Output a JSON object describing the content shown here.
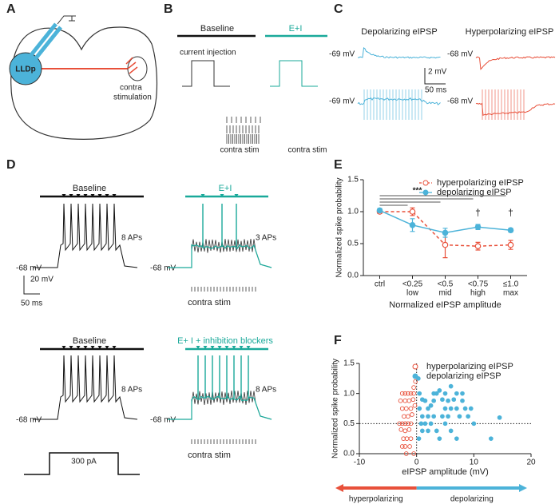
{
  "figure": {
    "panel_letters": [
      "A",
      "B",
      "C",
      "D",
      "E",
      "F"
    ],
    "a": {
      "region": "LLDp",
      "stim_line1": "contra",
      "stim_line2": "stimulation"
    },
    "b": {
      "baseline": "Baseline",
      "ei": "E+I",
      "current": "current injection",
      "contra": [
        "contra stim",
        "contra stim"
      ]
    },
    "c": {
      "depol": "Depolarizing eIPSP",
      "hyper": "Hyperpolarizing eIPSP",
      "v": [
        "-69 mV",
        "-68 mV",
        "-69 mV",
        "-68 mV"
      ],
      "scale_v": "2 mV",
      "scale_t": "50 ms"
    },
    "d": {
      "baseline": "Baseline",
      "ei": "E+I",
      "baseline2": "Baseline",
      "blockers": "E+ I + inhibition blockers",
      "aps": [
        "8 APs",
        "3 APs",
        "8 APs",
        "8 APs"
      ],
      "v": [
        "-68 mV",
        "-68 mV",
        "-68 mV",
        "-68 mV"
      ],
      "contra": [
        "contra stim",
        "contra stim"
      ],
      "scale_v": "20 mV",
      "scale_t": "50 ms",
      "current": "300 pA"
    }
  },
  "chart_data": [
    {
      "type": "line",
      "xlabel": "Normalized eIPSP amplitude",
      "ylabel": "Normalized spike probability",
      "categories": [
        "ctrl",
        "<0.25",
        "<0.5",
        "<0.75",
        "≤1.0"
      ],
      "category_sublabels": [
        null,
        "low",
        "mid",
        "high",
        "max"
      ],
      "ylim": [
        0,
        1.5
      ],
      "yticks": [
        {
          "value": 0,
          "label": "0.0"
        },
        0.5,
        {
          "value": 1,
          "label": "1.0"
        },
        1.5
      ],
      "legend": "upper right",
      "significance": "***",
      "daggers": [
        "†",
        "†"
      ],
      "series": [
        {
          "name": "hyperpolarizing eIPSP",
          "color": "#e8503a",
          "style": "dashed",
          "marker": "open",
          "values": [
            1.0,
            1.0,
            0.48,
            0.46,
            0.48
          ],
          "errors": [
            0.03,
            0.06,
            0.2,
            0.06,
            0.07
          ]
        },
        {
          "name": "depolarizing eIPSP",
          "color": "#4cb3d9",
          "style": "solid",
          "marker": "filled",
          "values": [
            1.02,
            0.79,
            0.67,
            0.76,
            0.71
          ],
          "errors": [
            0.03,
            0.1,
            0.07,
            0.04,
            0.03
          ]
        }
      ]
    },
    {
      "type": "scatter",
      "xlabel": "eIPSP amplitude (mV)",
      "ylabel": "Normalized spike probability",
      "xlim": [
        -10,
        20
      ],
      "xticks": [
        -10,
        0,
        10,
        20
      ],
      "ylim": [
        0,
        1.5
      ],
      "yticks": [
        {
          "value": 0,
          "label": "0.0"
        },
        0.5,
        {
          "value": 1,
          "label": "1.0"
        },
        1.5
      ],
      "reference_x": 0,
      "reference_y": 0.5,
      "legend": "upper right",
      "direction_labels": [
        "hyperpolarizing",
        "depolarizing"
      ],
      "series": [
        {
          "name": "hyperpolarizing eIPSP",
          "color": "#e8503a",
          "marker": "open",
          "x": [
            -2.5,
            -2,
            -1.5,
            -1,
            -0.5,
            -2.8,
            -2,
            -1.3,
            -0.6,
            -2.5,
            -1.8,
            -1,
            -0.3,
            -2.2,
            -1.5,
            -0.8,
            -3,
            -2.5,
            -2,
            -1.5,
            -1,
            -2.7,
            -2,
            -1.3,
            -2.3,
            -1.7,
            -1,
            -2.5,
            -2,
            -1.2,
            -0.5,
            -1.8,
            -0.2,
            -0.5
          ],
          "values": [
            1.0,
            1.0,
            1.0,
            1.0,
            1.0,
            0.88,
            0.88,
            0.88,
            0.9,
            0.75,
            0.75,
            0.75,
            0.8,
            0.62,
            0.62,
            0.65,
            0.5,
            0.5,
            0.5,
            0.5,
            0.5,
            0.4,
            0.38,
            0.4,
            0.25,
            0.25,
            0.25,
            0.12,
            0.12,
            0.12,
            0,
            0,
            1.2,
            1.1
          ]
        },
        {
          "name": "depolarizing eIPSP",
          "color": "#4cb3d9",
          "marker": "filled",
          "x": [
            0.3,
            0.5,
            1,
            1.5,
            2,
            2.5,
            3,
            3.5,
            4,
            4.5,
            5,
            5.5,
            6,
            6.5,
            7,
            7.5,
            8,
            8.5,
            9,
            9.5,
            10,
            1,
            1.5,
            2,
            2.5,
            3,
            3.5,
            4,
            5,
            6,
            7,
            0.5,
            1,
            0.8,
            2,
            4.5,
            5.5,
            6,
            7,
            8,
            13,
            14.5,
            0.4,
            3,
            5
          ],
          "values": [
            1.25,
            1.0,
            0.9,
            0.88,
            0.75,
            0.8,
            0.88,
            1.0,
            1.05,
            0.9,
            0.75,
            0.88,
            1.12,
            0.9,
            0.75,
            0.62,
            0.88,
            0.75,
            0.62,
            0.75,
            0.5,
            0.62,
            0.5,
            0.38,
            0.5,
            0.62,
            0.38,
            0.25,
            0.5,
            0.38,
            0.25,
            0.75,
            0.38,
            0.5,
            0.62,
            0.62,
            0.62,
            0.75,
            1.0,
            1.0,
            0.25,
            0.6,
            0.25,
            1.0,
            1.0
          ]
        }
      ]
    }
  ]
}
